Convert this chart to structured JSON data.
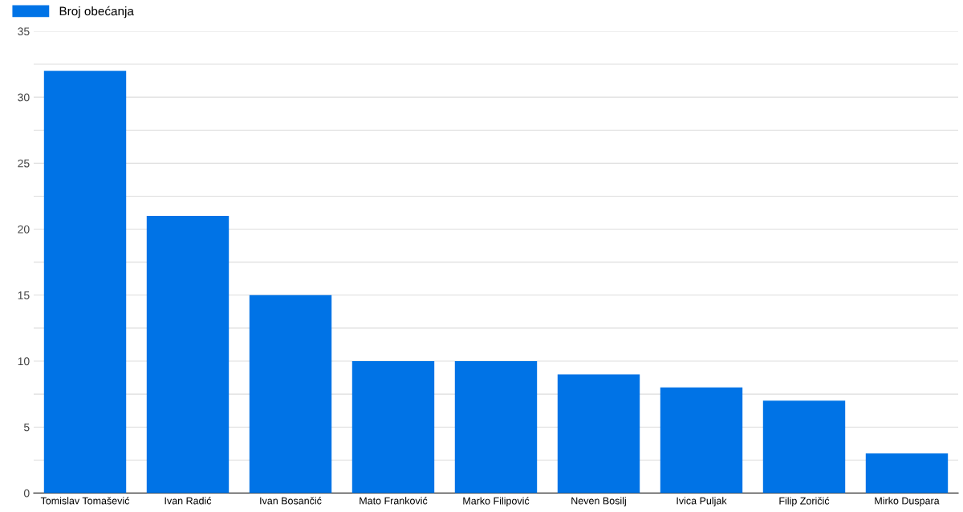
{
  "chart_data": {
    "type": "bar",
    "categories": [
      "Tomislav Tomašević",
      "Ivan Radić",
      "Ivan Bosančić",
      "Mato Franković",
      "Marko Filipović",
      "Neven Bosilj",
      "Ivica Puljak",
      "Filip Zoričić",
      "Mirko Duspara"
    ],
    "series": [
      {
        "name": "Broj obećanja",
        "color": "#0073e6",
        "values": [
          32,
          21,
          15,
          10,
          10,
          9,
          8,
          7,
          3
        ]
      }
    ],
    "ylim": [
      0,
      35
    ],
    "yticks": [
      0,
      {
        "value": 2.5,
        "label": null
      },
      5,
      {
        "value": 7.5,
        "label": null
      },
      10,
      {
        "value": 12.5,
        "label": null
      },
      15,
      {
        "value": 17.5,
        "label": null
      },
      20,
      {
        "value": 22.5,
        "label": null
      },
      25,
      {
        "value": 27.5,
        "label": null
      },
      30,
      {
        "value": 32.5,
        "label": null
      },
      35
    ],
    "grid": "y",
    "legend": "top left"
  }
}
